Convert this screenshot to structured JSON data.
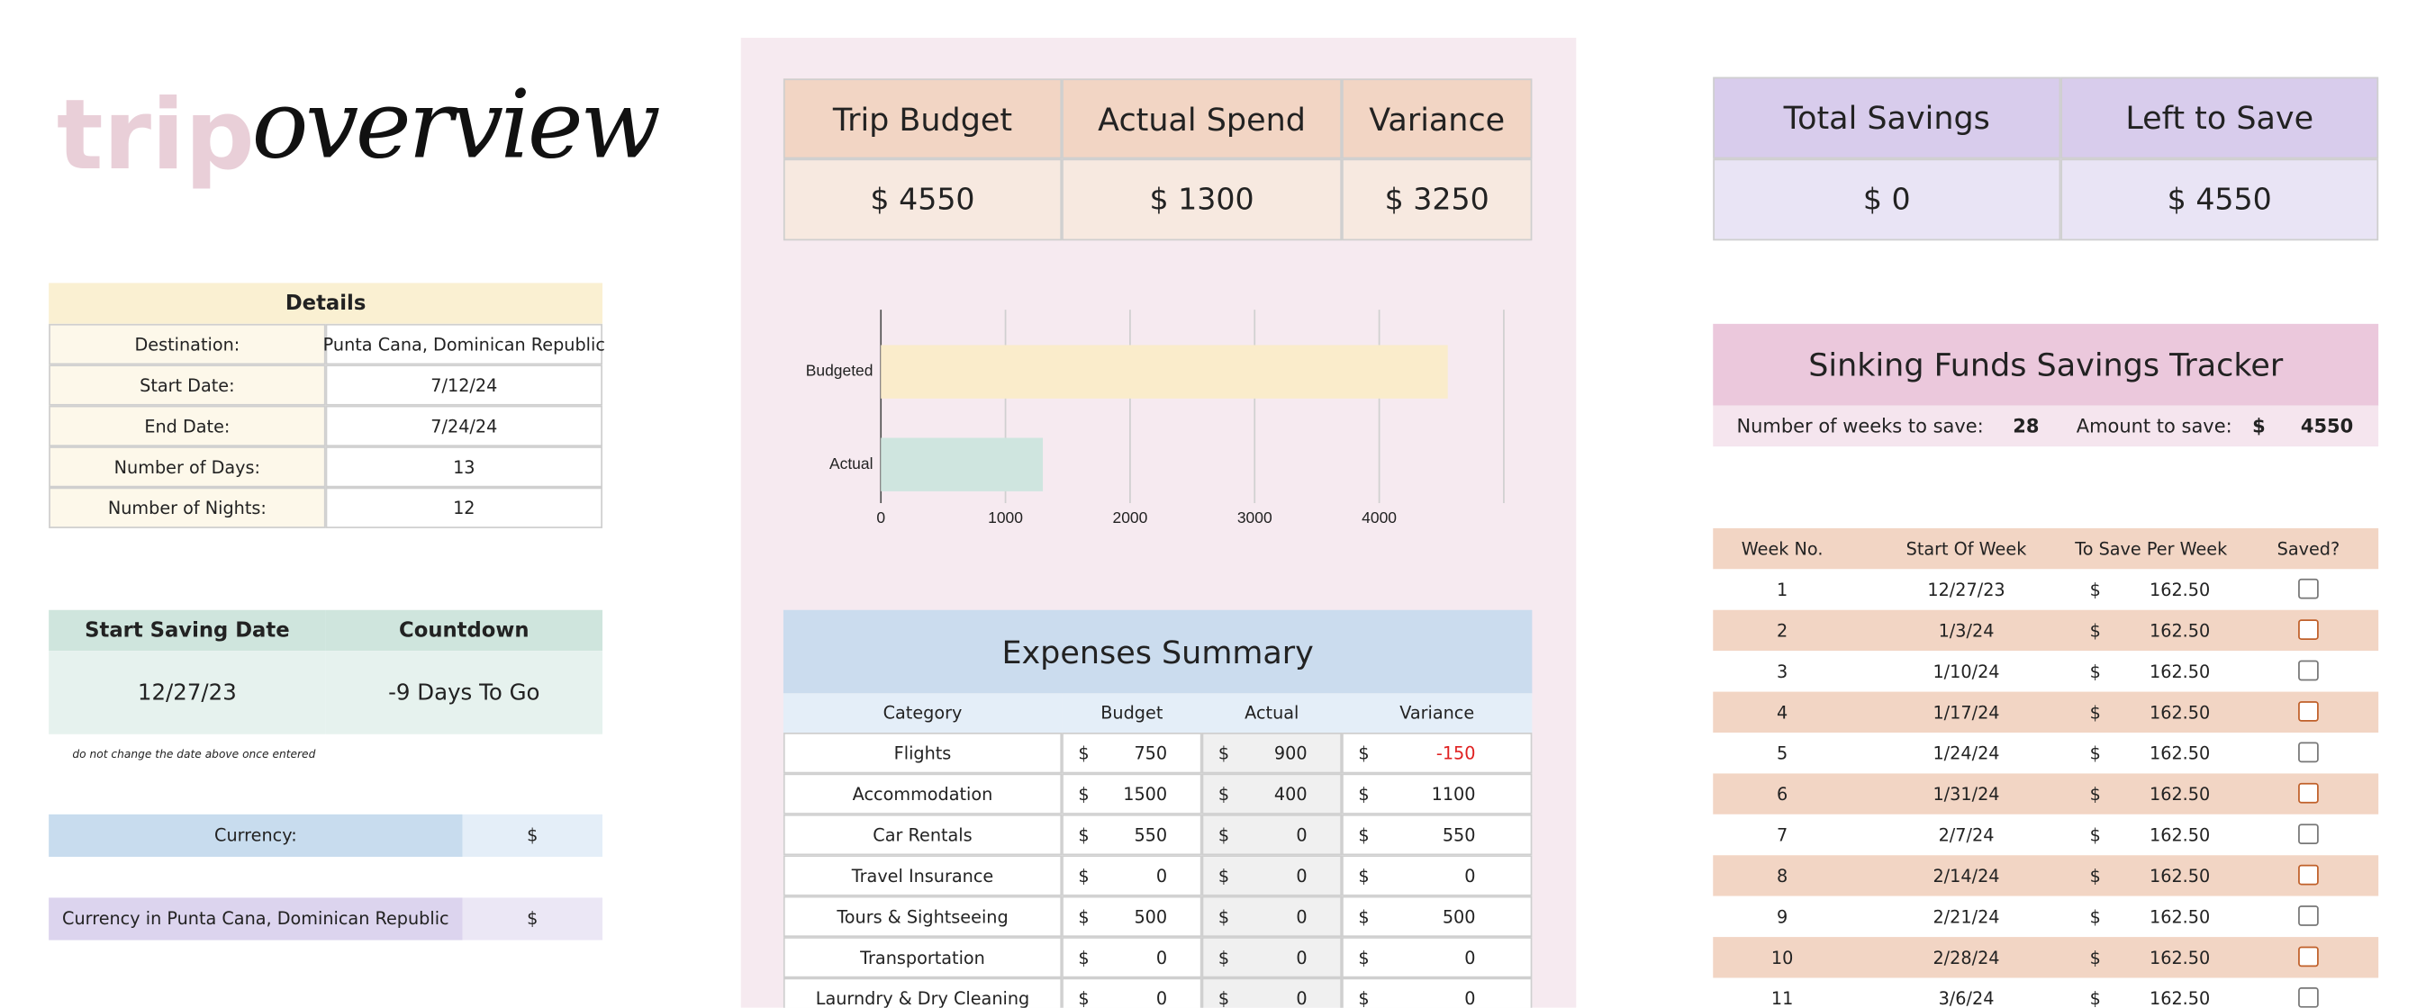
{
  "title": {
    "light": "trip",
    "script": "overview"
  },
  "details": {
    "header": "Details",
    "rows": [
      [
        "Destination:",
        "Punta Cana, Dominican Republic"
      ],
      [
        "Start Date:",
        "7/12/24"
      ],
      [
        "End Date:",
        "7/24/24"
      ],
      [
        "Number of Days:",
        "13"
      ],
      [
        "Number of Nights:",
        "12"
      ]
    ]
  },
  "saving": {
    "headers": [
      "Start Saving Date",
      "Countdown"
    ],
    "values": [
      "12/27/23",
      "-9 Days To Go"
    ],
    "note": "do not change the date above once entered"
  },
  "currency": [
    [
      "Currency:",
      "$"
    ],
    [
      "Currency in Punta Cana, Dominican Republic",
      "$"
    ]
  ],
  "summary": {
    "headers": [
      "Trip Budget",
      "Actual Spend",
      "Variance"
    ],
    "values": [
      "$ 4550",
      "$ 1300",
      "$ 3250"
    ]
  },
  "chart_data": {
    "type": "bar",
    "orientation": "horizontal",
    "categories": [
      "Budgeted",
      "Actual"
    ],
    "values": [
      4550,
      1300
    ],
    "colors": [
      "#faeccb",
      "#cfe5df"
    ],
    "xlim": [
      0,
      5000
    ],
    "xticks": [
      0,
      1000,
      2000,
      3000,
      4000
    ],
    "grid": true
  },
  "expenses": {
    "title": "Expenses Summary",
    "headers": [
      "Category",
      "Budget",
      "Actual",
      "Variance"
    ],
    "rows": [
      [
        "Flights",
        "$",
        "750",
        "$",
        "900",
        "$",
        "-150"
      ],
      [
        "Accommodation",
        "$",
        "1500",
        "$",
        "400",
        "$",
        "1100"
      ],
      [
        "Car Rentals",
        "$",
        "550",
        "$",
        "0",
        "$",
        "550"
      ],
      [
        "Travel Insurance",
        "$",
        "0",
        "$",
        "0",
        "$",
        "0"
      ],
      [
        "Tours & Sightseeing",
        "$",
        "500",
        "$",
        "0",
        "$",
        "500"
      ],
      [
        "Transportation",
        "$",
        "0",
        "$",
        "0",
        "$",
        "0"
      ],
      [
        "Laurndry & Dry Cleaning",
        "$",
        "0",
        "$",
        "0",
        "$",
        "0"
      ]
    ]
  },
  "savings": {
    "headers": [
      "Total Savings",
      "Left to Save"
    ],
    "values": [
      "$ 0",
      "$ 4550"
    ]
  },
  "tracker": {
    "title": "Sinking Funds Savings Tracker",
    "weeks_label": "Number of weeks to save:",
    "weeks": "28",
    "amount_label": "Amount to save:",
    "currency": "$",
    "amount": "4550"
  },
  "weeks": {
    "headers": [
      "Week No.",
      "Start Of Week",
      "To Save Per Week",
      "Saved?"
    ],
    "rows": [
      [
        "1",
        "12/27/23",
        "$",
        "162.50"
      ],
      [
        "2",
        "1/3/24",
        "$",
        "162.50"
      ],
      [
        "3",
        "1/10/24",
        "$",
        "162.50"
      ],
      [
        "4",
        "1/17/24",
        "$",
        "162.50"
      ],
      [
        "5",
        "1/24/24",
        "$",
        "162.50"
      ],
      [
        "6",
        "1/31/24",
        "$",
        "162.50"
      ],
      [
        "7",
        "2/7/24",
        "$",
        "162.50"
      ],
      [
        "8",
        "2/14/24",
        "$",
        "162.50"
      ],
      [
        "9",
        "2/21/24",
        "$",
        "162.50"
      ],
      [
        "10",
        "2/28/24",
        "$",
        "162.50"
      ],
      [
        "11",
        "3/6/24",
        "$",
        "162.50"
      ]
    ]
  }
}
